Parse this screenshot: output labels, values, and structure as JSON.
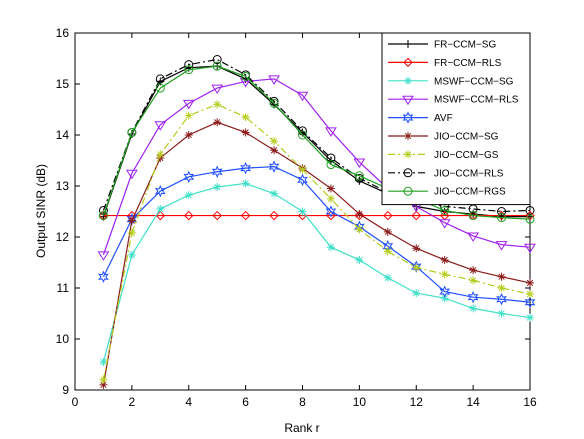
{
  "chart_data": {
    "type": "line",
    "title": "",
    "xlabel": "Rank r",
    "ylabel": "Output SINR (dB)",
    "xlim": [
      0,
      16
    ],
    "ylim": [
      9,
      16
    ],
    "xticks": [
      0,
      2,
      4,
      6,
      8,
      10,
      12,
      14,
      16
    ],
    "yticks": [
      9,
      10,
      11,
      12,
      13,
      14,
      15,
      16
    ],
    "grid": false,
    "legend_position": "top-right",
    "x": [
      1,
      2,
      3,
      4,
      5,
      6,
      7,
      8,
      9,
      10,
      11,
      12,
      13,
      14,
      15,
      16
    ],
    "series": [
      {
        "name": "FR−CCM−SG",
        "color": "#000000",
        "dash": "none",
        "marker": "plus",
        "values": [
          12.4,
          14.02,
          15.05,
          15.32,
          15.35,
          15.1,
          14.6,
          14.05,
          13.5,
          13.1,
          12.85,
          12.6,
          12.5,
          12.45,
          12.4,
          12.4
        ]
      },
      {
        "name": "FR−CCM−RLS",
        "color": "#ff0000",
        "dash": "none",
        "marker": "diamond",
        "values": [
          12.42,
          12.42,
          12.42,
          12.42,
          12.42,
          12.42,
          12.42,
          12.42,
          12.42,
          12.42,
          12.42,
          12.42,
          12.42,
          12.42,
          12.42,
          12.42
        ]
      },
      {
        "name": "MSWF−CCM−SG",
        "color": "#40e0c8",
        "dash": "none",
        "marker": "star",
        "values": [
          9.55,
          11.65,
          12.55,
          12.82,
          12.98,
          13.05,
          12.85,
          12.5,
          11.8,
          11.55,
          11.2,
          10.9,
          10.8,
          10.6,
          10.5,
          10.42
        ]
      },
      {
        "name": "MSWF−CCM−RLS",
        "color": "#a020f0",
        "dash": "none",
        "marker": "triangle-down",
        "values": [
          11.65,
          13.25,
          14.2,
          14.62,
          14.92,
          15.05,
          15.1,
          14.78,
          14.08,
          13.47,
          12.95,
          12.6,
          12.28,
          12.02,
          11.85,
          11.8
        ]
      },
      {
        "name": "AVF",
        "color": "#1f4fff",
        "dash": "none",
        "marker": "hexagram",
        "values": [
          11.22,
          12.35,
          12.9,
          13.18,
          13.28,
          13.35,
          13.38,
          13.12,
          12.5,
          12.2,
          11.82,
          11.42,
          10.93,
          10.82,
          10.78,
          10.72
        ]
      },
      {
        "name": "JIO−CCM−SG",
        "color": "#8b1a1a",
        "dash": "none",
        "marker": "asterisk",
        "values": [
          9.1,
          12.32,
          13.55,
          14.0,
          14.25,
          14.05,
          13.7,
          13.35,
          12.95,
          12.45,
          12.1,
          11.78,
          11.55,
          11.35,
          11.22,
          11.1
        ]
      },
      {
        "name": "JIO−CCM−GS",
        "color": "#b5cc1a",
        "dash": "dashdot",
        "marker": "asterisk",
        "values": [
          9.2,
          12.08,
          13.62,
          14.38,
          14.6,
          14.35,
          13.88,
          13.32,
          12.75,
          12.15,
          11.72,
          11.4,
          11.27,
          11.15,
          11.0,
          10.88
        ]
      },
      {
        "name": "JIO−CCM−RLS",
        "color": "#000000",
        "dash": "dashdot",
        "marker": "circle",
        "values": [
          12.52,
          14.05,
          15.1,
          15.38,
          15.48,
          15.18,
          14.66,
          14.08,
          13.55,
          13.15,
          12.88,
          12.72,
          12.6,
          12.55,
          12.5,
          12.52
        ]
      },
      {
        "name": "JIO−CCM−RGS",
        "color": "#20a020",
        "dash": "none",
        "marker": "circle",
        "values": [
          12.42,
          14.05,
          14.92,
          15.28,
          15.35,
          15.15,
          14.62,
          14.0,
          13.42,
          13.2,
          12.95,
          12.75,
          12.52,
          12.42,
          12.38,
          12.35
        ]
      }
    ]
  }
}
